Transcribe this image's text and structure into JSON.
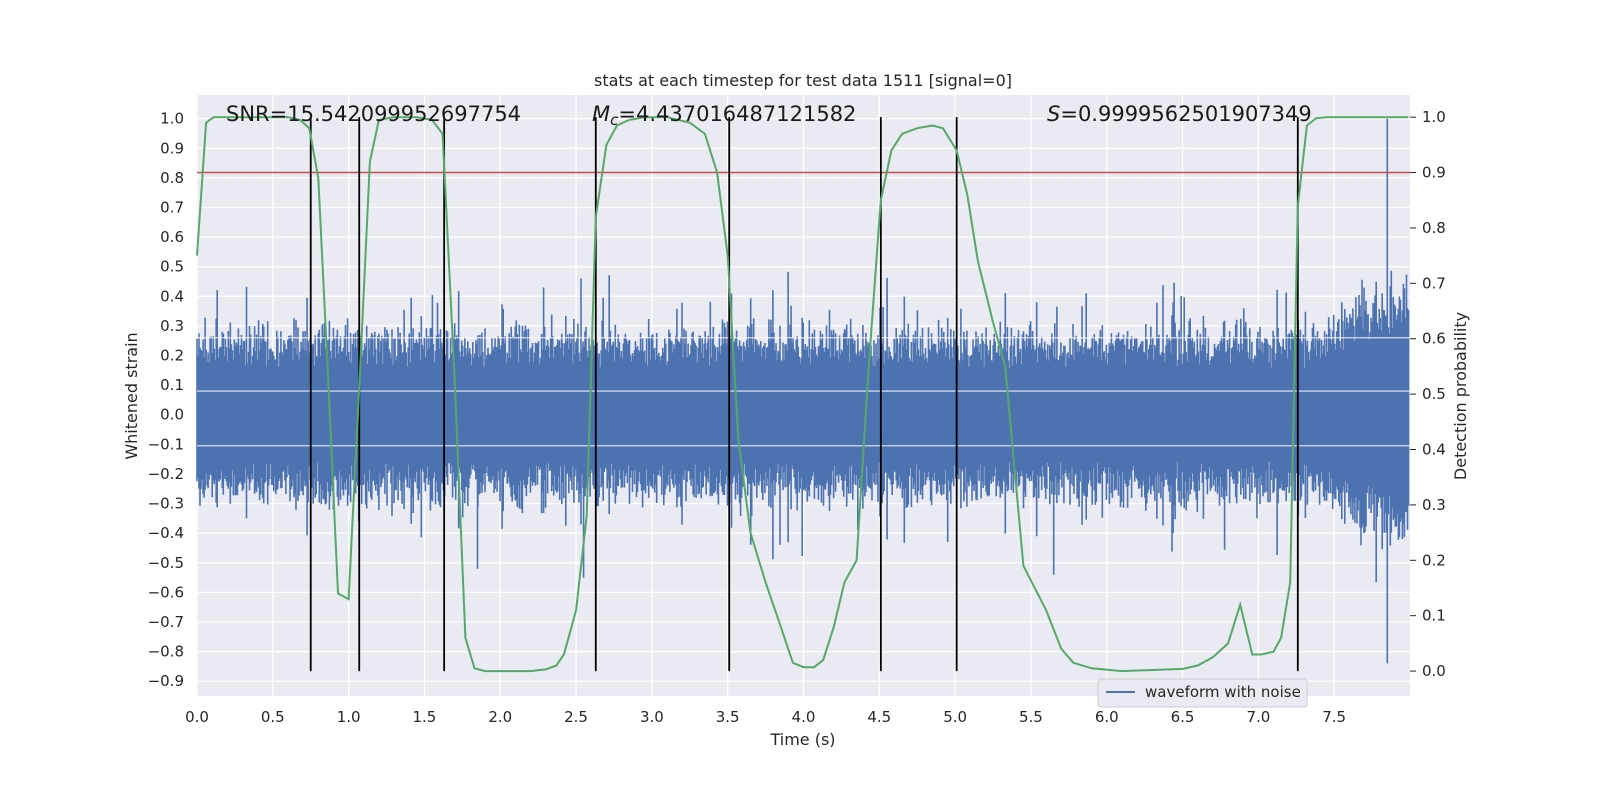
{
  "chart_data": {
    "type": "line",
    "title": "stats at each timestep for test data 1511 [signal=0]",
    "xlabel": "Time (s)",
    "ylabel_left": "Whitened strain",
    "ylabel_right": "Detection probability",
    "xlim": [
      0.0,
      8.0
    ],
    "ylim_left": [
      -0.95,
      1.08
    ],
    "ylim_right": [
      -0.045,
      1.04
    ],
    "xticks": [
      "0.0",
      "0.5",
      "1.0",
      "1.5",
      "2.0",
      "2.5",
      "3.0",
      "3.5",
      "4.0",
      "4.5",
      "5.0",
      "5.5",
      "6.0",
      "6.5",
      "7.0",
      "7.5"
    ],
    "yticks_left": [
      "1.0",
      "0.9",
      "0.8",
      "0.7",
      "0.6",
      "0.5",
      "0.4",
      "0.3",
      "0.2",
      "0.1",
      "0.0",
      "−0.1",
      "−0.2",
      "−0.3",
      "−0.4",
      "−0.5",
      "−0.6",
      "−0.7",
      "−0.8",
      "−0.9"
    ],
    "yticks_right": [
      "1.0",
      "0.9",
      "0.8",
      "0.7",
      "0.6",
      "0.5",
      "0.4",
      "0.3",
      "0.2",
      "0.1",
      "0.0"
    ],
    "annotations": {
      "snr": "SNR=15.542099952697754",
      "mc_symbol": "M",
      "mc_sub": "c",
      "mc_value": "=4.437016487121582",
      "s_symbol": "S",
      "s_value": "=0.9999562501907349"
    },
    "threshold": 0.9,
    "vertical_markers": [
      0.75,
      1.07,
      1.63,
      2.63,
      3.51,
      4.51,
      5.01,
      7.26
    ],
    "series": [
      {
        "name": "waveform with noise",
        "axis": "left",
        "color": "#4c72b0",
        "description": "whitened strain noise, roughly ±0.3 with spikes; peak near t=7.85 reaching ~1.0 and -0.84",
        "spikes": [
          [
            7.85,
            1.0
          ],
          [
            7.85,
            -0.84
          ],
          [
            1.85,
            -0.52
          ],
          [
            2.55,
            -0.55
          ],
          [
            5.65,
            -0.54
          ]
        ]
      },
      {
        "name": "detection probability",
        "axis": "right",
        "color": "#55a868",
        "x": [
          0.0,
          0.06,
          0.11,
          0.2,
          0.4,
          0.6,
          0.68,
          0.74,
          0.8,
          0.87,
          0.93,
          1.0,
          1.07,
          1.14,
          1.2,
          1.3,
          1.45,
          1.55,
          1.62,
          1.7,
          1.77,
          1.83,
          1.9,
          2.0,
          2.1,
          2.2,
          2.3,
          2.37,
          2.42,
          2.5,
          2.57,
          2.63,
          2.7,
          2.77,
          2.85,
          2.95,
          3.1,
          3.25,
          3.35,
          3.43,
          3.5,
          3.57,
          3.65,
          3.75,
          3.85,
          3.93,
          4.0,
          4.07,
          4.13,
          4.2,
          4.27,
          4.35,
          4.43,
          4.51,
          4.58,
          4.65,
          4.75,
          4.85,
          4.92,
          5.01,
          5.08,
          5.15,
          5.25,
          5.33,
          5.45,
          5.6,
          5.7,
          5.78,
          5.9,
          6.1,
          6.3,
          6.5,
          6.6,
          6.7,
          6.8,
          6.88,
          6.96,
          7.02,
          7.1,
          7.15,
          7.21,
          7.26,
          7.32,
          7.38,
          7.45,
          7.55,
          7.7,
          7.85,
          7.99
        ],
        "values": [
          0.75,
          0.99,
          1.0,
          1.0,
          1.0,
          1.0,
          0.995,
          0.98,
          0.89,
          0.5,
          0.14,
          0.13,
          0.51,
          0.92,
          0.995,
          1.0,
          1.0,
          0.995,
          0.97,
          0.52,
          0.06,
          0.005,
          0.0,
          0.0,
          0.0,
          0.0,
          0.003,
          0.01,
          0.03,
          0.11,
          0.28,
          0.82,
          0.95,
          0.985,
          0.995,
          1.0,
          1.0,
          0.99,
          0.97,
          0.9,
          0.75,
          0.42,
          0.25,
          0.16,
          0.08,
          0.015,
          0.007,
          0.007,
          0.02,
          0.08,
          0.16,
          0.2,
          0.55,
          0.85,
          0.94,
          0.97,
          0.98,
          0.985,
          0.98,
          0.94,
          0.86,
          0.74,
          0.63,
          0.55,
          0.19,
          0.11,
          0.04,
          0.015,
          0.005,
          0.0,
          0.002,
          0.004,
          0.01,
          0.025,
          0.05,
          0.12,
          0.03,
          0.03,
          0.035,
          0.06,
          0.16,
          0.84,
          0.985,
          0.998,
          1.0,
          1.0,
          1.0,
          1.0,
          1.0
        ]
      }
    ],
    "legend": {
      "label": "waveform with noise",
      "placement": "lower-center-right"
    }
  }
}
